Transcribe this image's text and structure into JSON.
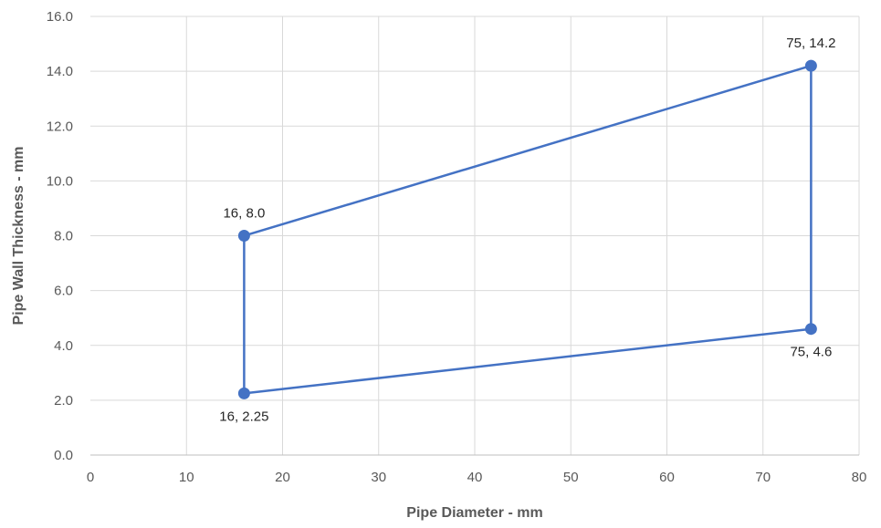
{
  "chart_data": {
    "type": "line",
    "title": "",
    "xlabel": "Pipe Diameter - mm",
    "ylabel": "Pipe Wall Thickness - mm",
    "xlim": [
      0,
      80
    ],
    "ylim": [
      0,
      16
    ],
    "x_ticks": [
      0,
      10,
      20,
      30,
      40,
      50,
      60,
      70,
      80
    ],
    "y_ticks": [
      "0.0",
      "2.0",
      "4.0",
      "6.0",
      "8.0",
      "10.0",
      "12.0",
      "14.0",
      "16.0"
    ],
    "grid": true,
    "legend": "none",
    "series": [
      {
        "color": "#4472C4",
        "points": [
          {
            "x": 16,
            "y": 8.0,
            "label": "16, 8.0",
            "label_pos": "above"
          },
          {
            "x": 75,
            "y": 14.2,
            "label": "75, 14.2",
            "label_pos": "above"
          },
          {
            "x": 75,
            "y": 4.6,
            "label": "75, 4.6",
            "label_pos": "below"
          },
          {
            "x": 16,
            "y": 2.25,
            "label": "16, 2.25",
            "label_pos": "below"
          },
          {
            "x": 16,
            "y": 8.0
          }
        ]
      }
    ]
  },
  "colors": {
    "grid": "#D9D9D9",
    "axis_line": "#BFBFBF",
    "series": "#4472C4"
  }
}
